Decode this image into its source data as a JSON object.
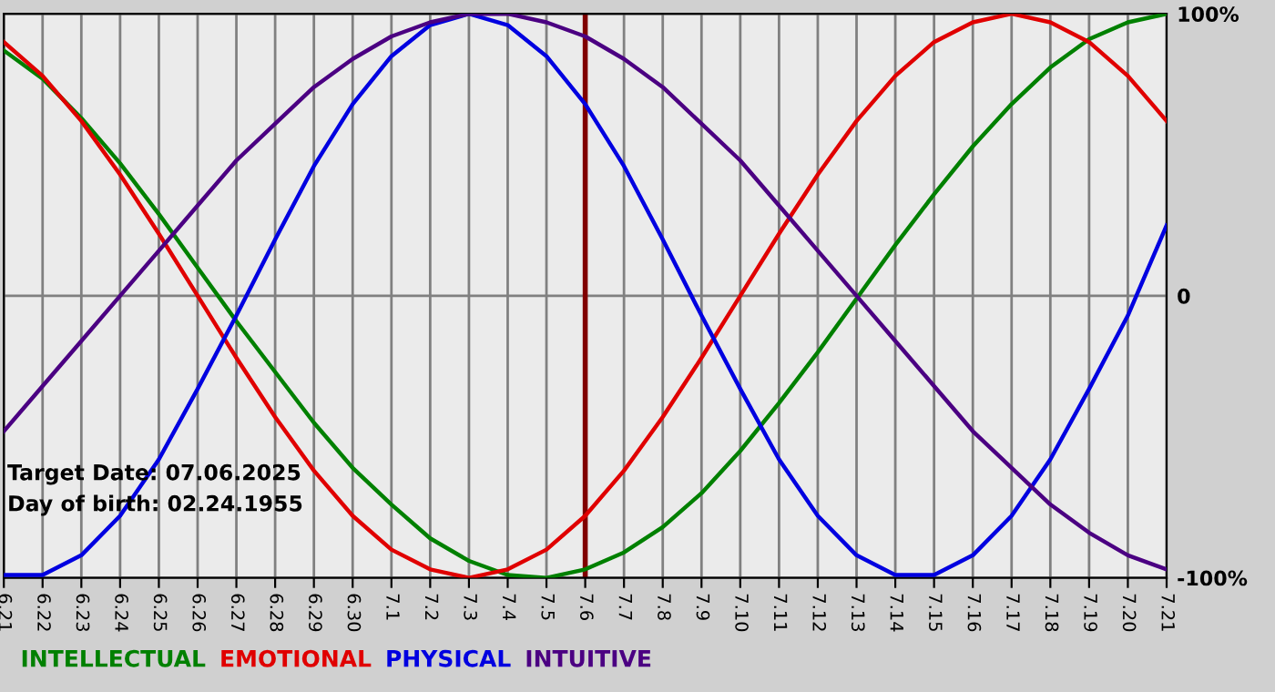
{
  "chart_data": {
    "type": "line",
    "categories": [
      "6.21",
      "6.22",
      "6.23",
      "6.24",
      "6.25",
      "6.26",
      "6.27",
      "6.28",
      "6.29",
      "6.30",
      "7.1",
      "7.2",
      "7.3",
      "7.4",
      "7.5",
      "7.6",
      "7.7",
      "7.8",
      "7.9",
      "7.10",
      "7.11",
      "7.12",
      "7.13",
      "7.14",
      "7.15",
      "7.16",
      "7.17",
      "7.18",
      "7.19",
      "7.20",
      "7.21"
    ],
    "series": [
      {
        "name": "INTELLECTUAL",
        "color": "#008000",
        "values": [
          87,
          77,
          63,
          47,
          29,
          10,
          -9,
          -27,
          -45,
          -61,
          -74,
          -86,
          -94,
          -99,
          -100,
          -97,
          -91,
          -82,
          -70,
          -55,
          -38,
          -20,
          -1,
          18,
          36,
          53,
          68,
          81,
          91,
          97,
          100
        ]
      },
      {
        "name": "EMOTIONAL",
        "color": "#e00000",
        "values": [
          90,
          78,
          62,
          43,
          22,
          0,
          -22,
          -43,
          -62,
          -78,
          -90,
          -97,
          -100,
          -97,
          -90,
          -78,
          -62,
          -43,
          -22,
          0,
          22,
          43,
          62,
          78,
          90,
          97,
          100,
          97,
          90,
          78,
          62
        ]
      },
      {
        "name": "PHYSICAL",
        "color": "#0000e0",
        "values": [
          -99,
          -99,
          -92,
          -78,
          -58,
          -33,
          -7,
          20,
          46,
          68,
          85,
          96,
          100,
          96,
          85,
          68,
          46,
          20,
          -7,
          -33,
          -58,
          -78,
          -92,
          -99,
          -99,
          -92,
          -78,
          -58,
          -33,
          -7,
          25
        ]
      },
      {
        "name": "INTUITIVE",
        "color": "#4b0082",
        "values": [
          -48,
          -32,
          -16,
          0,
          16,
          32,
          48,
          61,
          74,
          84,
          92,
          97,
          100,
          100,
          97,
          92,
          84,
          74,
          61,
          48,
          32,
          16,
          0,
          -16,
          -32,
          -48,
          -61,
          -74,
          -84,
          -92,
          -97
        ]
      }
    ],
    "ylim": [
      -100,
      100
    ],
    "yticks": [
      {
        "value": 100,
        "label": "100%"
      },
      0,
      {
        "value": -100,
        "label": "-100%"
      }
    ],
    "ref_lines": [
      {
        "axis": "x",
        "value": "7.6",
        "color": "#800000"
      }
    ],
    "annotations": [
      "Target Date: 07.06.2025",
      "Day of birth: 02.24.1955"
    ],
    "grid": true,
    "legend": "bottom left",
    "marker": "none",
    "line_style": "solid"
  }
}
